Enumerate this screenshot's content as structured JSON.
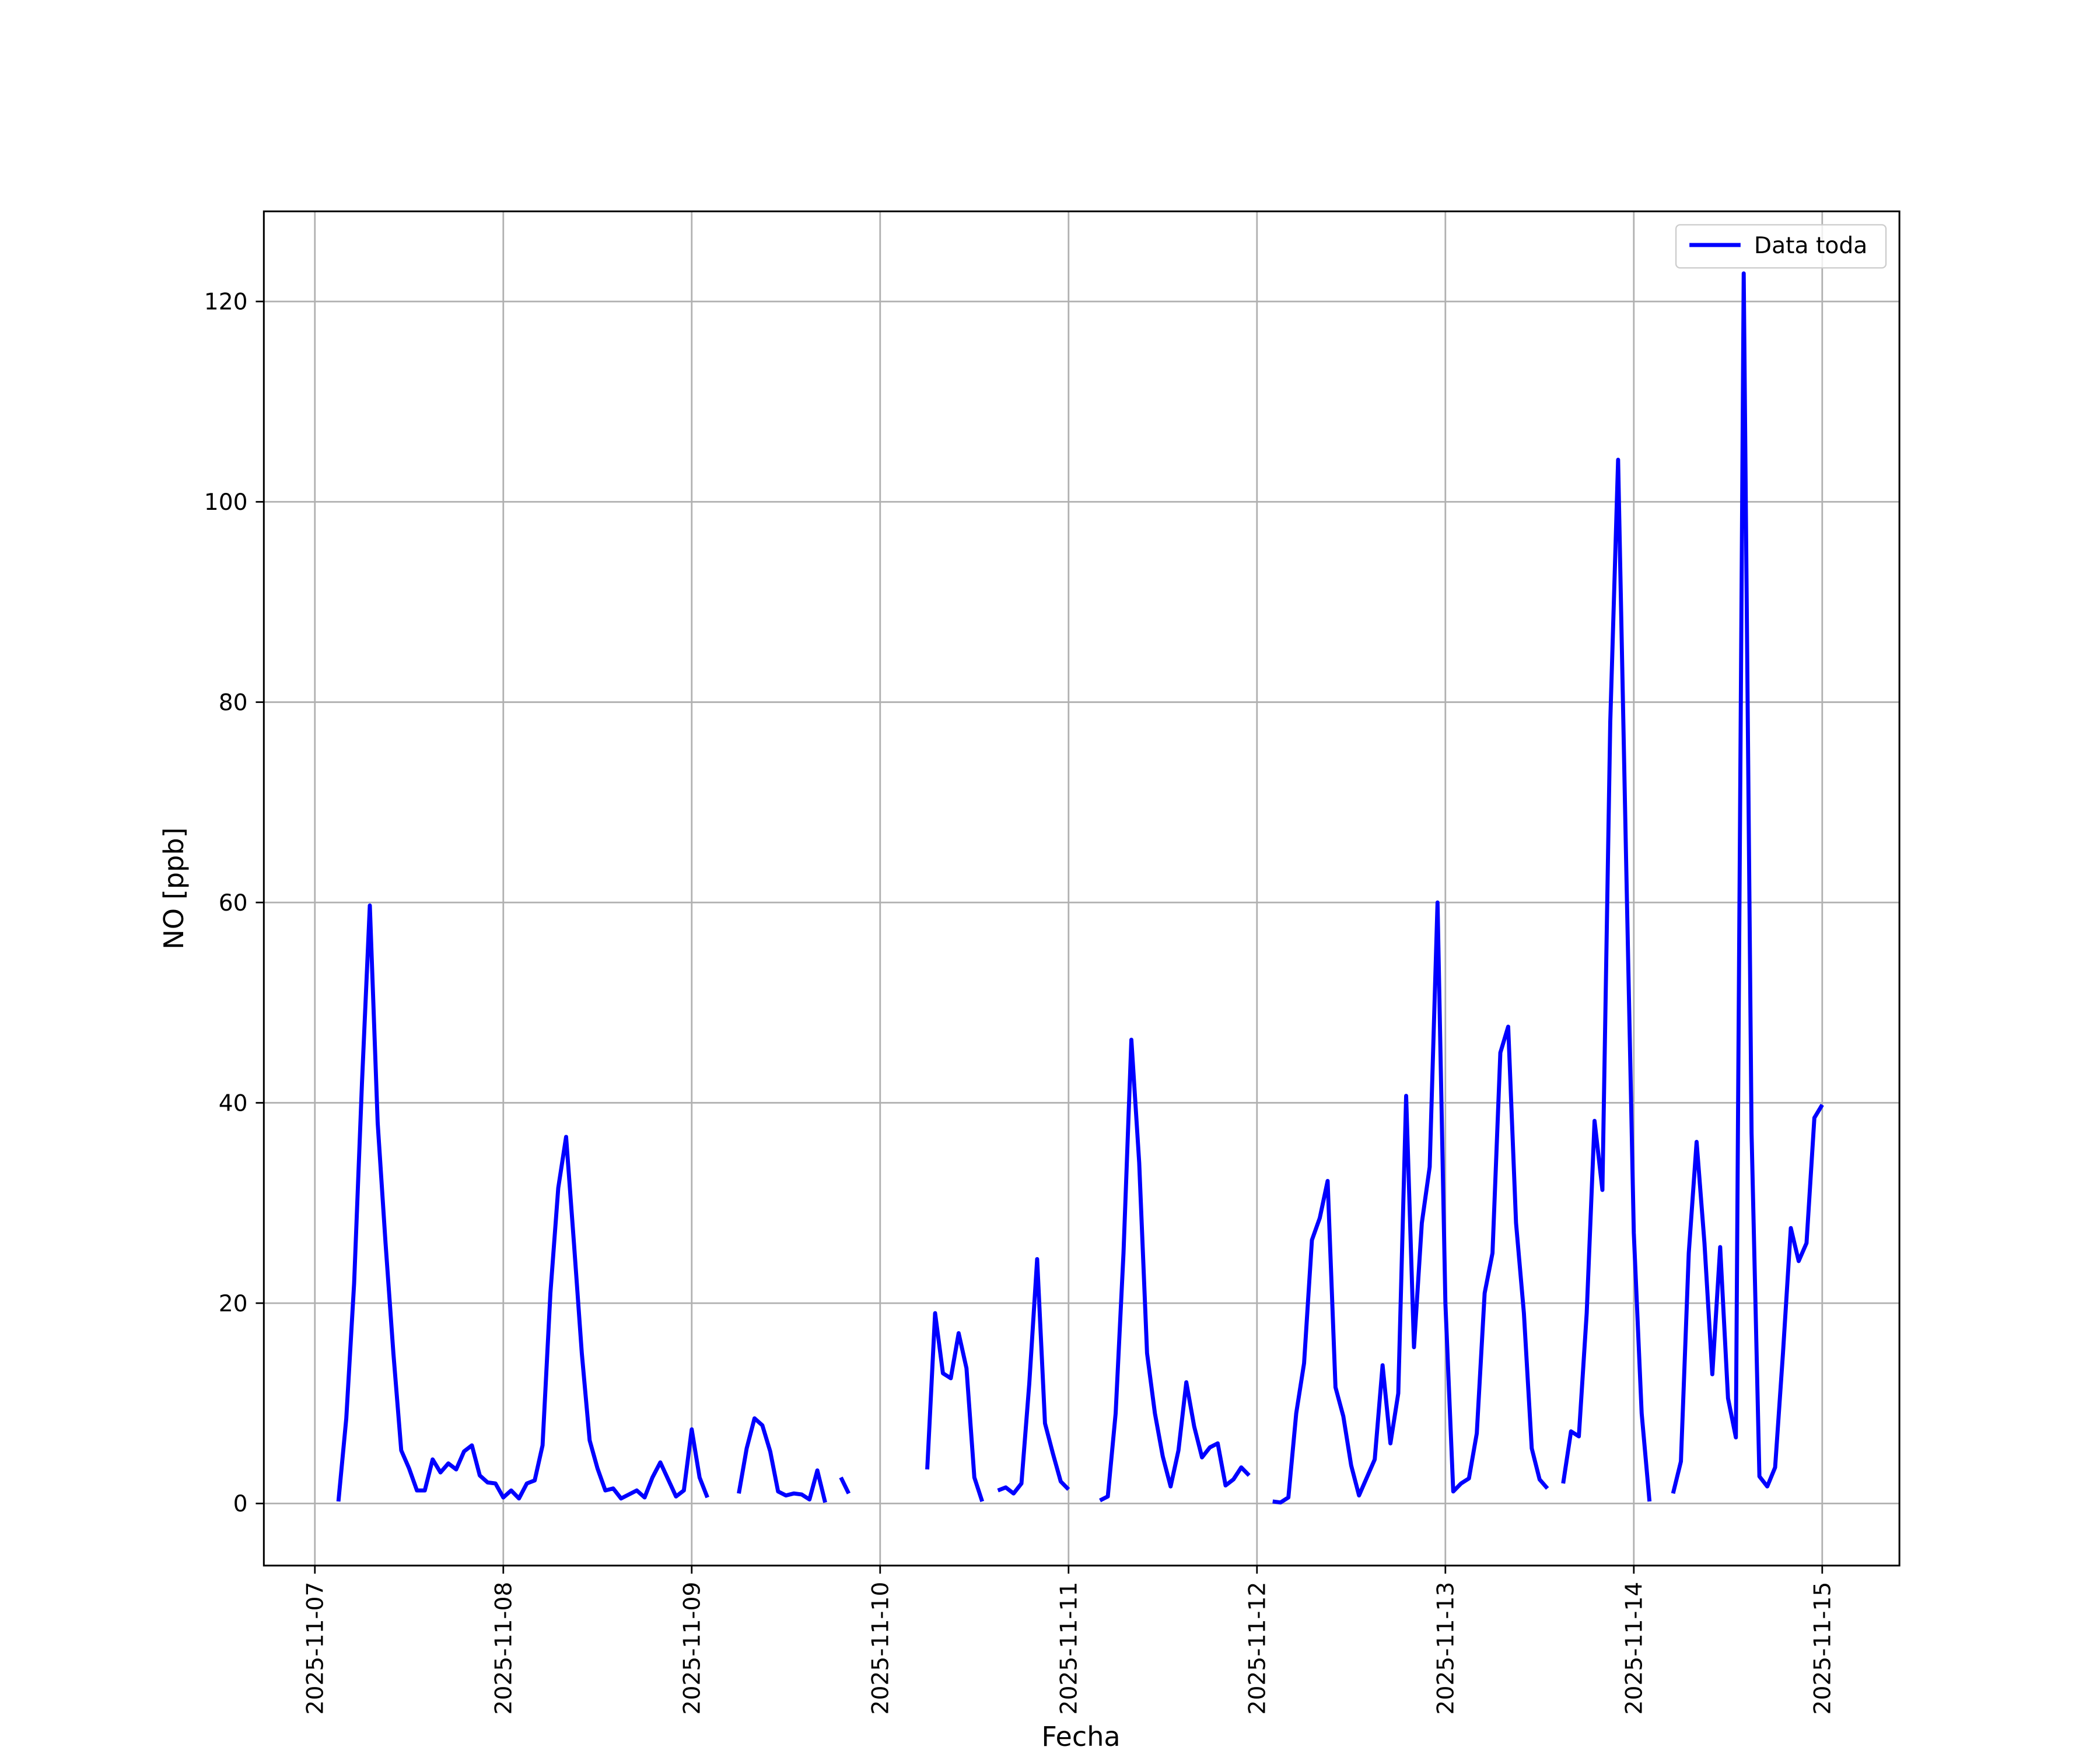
{
  "chart_data": {
    "type": "line",
    "xlabel": "Fecha",
    "ylabel": "NO [ppb]",
    "legend": "upper right",
    "grid": true,
    "xlim": [
      "2025-11-06 17:30",
      "2025-11-15 09:50"
    ],
    "ylim": [
      -6.2,
      129
    ],
    "xticks": [
      "2025-11-07",
      "2025-11-08",
      "2025-11-09",
      "2025-11-10",
      "2025-11-11",
      "2025-11-12",
      "2025-11-13",
      "2025-11-14",
      "2025-11-15"
    ],
    "yticks": [
      0,
      20,
      40,
      60,
      80,
      100,
      120
    ],
    "x": [
      "2025-11-07 03:00",
      "2025-11-07 04:00",
      "2025-11-07 05:00",
      "2025-11-07 06:00",
      "2025-11-07 07:00",
      "2025-11-07 08:00",
      "2025-11-07 09:00",
      "2025-11-07 10:00",
      "2025-11-07 11:00",
      "2025-11-07 12:00",
      "2025-11-07 13:00",
      "2025-11-07 14:00",
      "2025-11-07 15:00",
      "2025-11-07 16:00",
      "2025-11-07 17:00",
      "2025-11-07 18:00",
      "2025-11-07 19:00",
      "2025-11-07 20:00",
      "2025-11-07 21:00",
      "2025-11-07 22:00",
      "2025-11-07 23:00",
      "2025-11-08 00:00",
      "2025-11-08 01:00",
      "2025-11-08 02:00",
      "2025-11-08 03:00",
      "2025-11-08 04:00",
      "2025-11-08 05:00",
      "2025-11-08 06:00",
      "2025-11-08 07:00",
      "2025-11-08 08:00",
      "2025-11-08 09:00",
      "2025-11-08 10:00",
      "2025-11-08 11:00",
      "2025-11-08 12:00",
      "2025-11-08 13:00",
      "2025-11-08 14:00",
      "2025-11-08 15:00",
      "2025-11-08 16:00",
      "2025-11-08 17:00",
      "2025-11-08 18:00",
      "2025-11-08 19:00",
      "2025-11-08 20:00",
      "2025-11-08 21:00",
      "2025-11-08 22:00",
      "2025-11-08 23:00",
      "2025-11-09 00:00",
      "2025-11-09 01:00",
      "2025-11-09 02:00",
      "2025-11-09 03:00",
      "2025-11-09 04:00",
      "2025-11-09 05:00",
      "2025-11-09 06:00",
      "2025-11-09 07:00",
      "2025-11-09 08:00",
      "2025-11-09 09:00",
      "2025-11-09 10:00",
      "2025-11-09 11:00",
      "2025-11-09 12:00",
      "2025-11-09 13:00",
      "2025-11-09 14:00",
      "2025-11-09 15:00",
      "2025-11-09 16:00",
      "2025-11-09 17:00",
      "2025-11-09 18:00",
      "2025-11-09 19:00",
      "2025-11-09 20:00",
      "2025-11-09 21:00",
      "2025-11-09 22:00",
      "2025-11-09 23:00",
      "2025-11-10 00:00",
      "2025-11-10 01:00",
      "2025-11-10 02:00",
      "2025-11-10 03:00",
      "2025-11-10 04:00",
      "2025-11-10 05:00",
      "2025-11-10 06:00",
      "2025-11-10 07:00",
      "2025-11-10 08:00",
      "2025-11-10 09:00",
      "2025-11-10 10:00",
      "2025-11-10 11:00",
      "2025-11-10 12:00",
      "2025-11-10 13:00",
      "2025-11-10 14:00",
      "2025-11-10 15:00",
      "2025-11-10 16:00",
      "2025-11-10 17:00",
      "2025-11-10 18:00",
      "2025-11-10 19:00",
      "2025-11-10 20:00",
      "2025-11-10 21:00",
      "2025-11-10 22:00",
      "2025-11-10 23:00",
      "2025-11-11 00:00",
      "2025-11-11 01:00",
      "2025-11-11 02:00",
      "2025-11-11 03:00",
      "2025-11-11 04:00",
      "2025-11-11 05:00",
      "2025-11-11 06:00",
      "2025-11-11 07:00",
      "2025-11-11 08:00",
      "2025-11-11 09:00",
      "2025-11-11 10:00",
      "2025-11-11 11:00",
      "2025-11-11 12:00",
      "2025-11-11 13:00",
      "2025-11-11 14:00",
      "2025-11-11 15:00",
      "2025-11-11 16:00",
      "2025-11-11 17:00",
      "2025-11-11 18:00",
      "2025-11-11 19:00",
      "2025-11-11 20:00",
      "2025-11-11 21:00",
      "2025-11-11 22:00",
      "2025-11-11 23:00",
      "2025-11-12 00:00",
      "2025-11-12 01:00",
      "2025-11-12 02:00",
      "2025-11-12 03:00",
      "2025-11-12 04:00",
      "2025-11-12 05:00",
      "2025-11-12 06:00",
      "2025-11-12 07:00",
      "2025-11-12 08:00",
      "2025-11-12 09:00",
      "2025-11-12 10:00",
      "2025-11-12 11:00",
      "2025-11-12 12:00",
      "2025-11-12 13:00",
      "2025-11-12 14:00",
      "2025-11-12 15:00",
      "2025-11-12 16:00",
      "2025-11-12 17:00",
      "2025-11-12 18:00",
      "2025-11-12 19:00",
      "2025-11-12 20:00",
      "2025-11-12 21:00",
      "2025-11-12 22:00",
      "2025-11-12 23:00",
      "2025-11-13 00:00",
      "2025-11-13 01:00",
      "2025-11-13 02:00",
      "2025-11-13 03:00",
      "2025-11-13 04:00",
      "2025-11-13 05:00",
      "2025-11-13 06:00",
      "2025-11-13 07:00",
      "2025-11-13 08:00",
      "2025-11-13 09:00",
      "2025-11-13 10:00",
      "2025-11-13 11:00",
      "2025-11-13 12:00",
      "2025-11-13 13:00",
      "2025-11-13 14:00",
      "2025-11-13 15:00",
      "2025-11-13 16:00",
      "2025-11-13 17:00",
      "2025-11-13 18:00",
      "2025-11-13 19:00",
      "2025-11-13 20:00",
      "2025-11-13 21:00",
      "2025-11-13 22:00",
      "2025-11-13 23:00",
      "2025-11-14 00:00",
      "2025-11-14 01:00",
      "2025-11-14 02:00",
      "2025-11-14 03:00",
      "2025-11-14 04:00",
      "2025-11-14 05:00",
      "2025-11-14 06:00",
      "2025-11-14 07:00",
      "2025-11-14 08:00",
      "2025-11-14 09:00",
      "2025-11-14 10:00",
      "2025-11-14 11:00",
      "2025-11-14 12:00",
      "2025-11-14 13:00",
      "2025-11-14 14:00",
      "2025-11-14 15:00",
      "2025-11-14 16:00",
      "2025-11-14 17:00",
      "2025-11-14 18:00",
      "2025-11-14 19:00",
      "2025-11-14 20:00",
      "2025-11-14 21:00",
      "2025-11-14 22:00",
      "2025-11-14 23:00",
      "2025-11-15 00:00"
    ],
    "series": [
      {
        "name": "Data toda",
        "color": "#0000ff",
        "values": [
          0.2,
          8.5,
          22,
          42,
          59.7,
          38,
          26,
          15,
          5.3,
          3.5,
          1.3,
          1.3,
          4.4,
          3.1,
          4,
          3.4,
          5.2,
          5.8,
          2.8,
          2.1,
          2,
          0.6,
          1.3,
          0.5,
          2,
          2.3,
          5.8,
          21,
          31.5,
          36.6,
          26,
          15,
          6.3,
          3.5,
          1.3,
          1.5,
          0.5,
          0.9,
          1.3,
          0.6,
          2.6,
          4.1,
          2.4,
          0.7,
          1.3,
          7.4,
          2.6,
          0.6,
          null,
          null,
          null,
          1.0,
          5.5,
          8.5,
          7.8,
          5.2,
          1.2,
          0.8,
          1.0,
          0.9,
          0.4,
          3.3,
          0.1,
          null,
          2.6,
          1.0,
          null,
          null,
          null,
          null,
          null,
          null,
          null,
          null,
          null,
          3.4,
          19,
          13,
          12.5,
          17,
          13.5,
          2.6,
          0.2,
          null,
          1.3,
          1.6,
          1.0,
          2,
          12,
          24.4,
          8,
          5,
          2.2,
          1.4,
          null,
          null,
          null,
          0.3,
          0.7,
          9,
          25,
          46.3,
          34,
          15,
          9,
          4.7,
          1.7,
          5.3,
          12.1,
          7.7,
          4.6,
          5.6,
          6,
          1.8,
          2.4,
          3.6,
          2.8,
          null,
          null,
          0.2,
          0.1,
          0.6,
          9,
          14,
          26.3,
          28.5,
          32.2,
          11.6,
          8.7,
          3.8,
          0.8,
          2.6,
          4.4,
          13.8,
          6,
          11,
          40.7,
          15.6,
          28,
          33.6,
          60,
          20,
          1.2,
          2,
          2.5,
          7,
          21,
          25,
          45,
          47.6,
          28,
          19,
          5.5,
          2.4,
          1.5,
          null,
          2,
          7.2,
          6.7,
          19,
          38.2,
          31.3,
          78,
          104.2,
          65,
          27,
          9,
          0.2,
          null,
          null,
          1.0,
          4.2,
          25,
          36.1,
          26,
          12.9,
          25.6,
          10.5,
          6.6,
          122.8,
          37,
          2.7,
          1.7,
          3.6,
          15,
          27.5,
          24.2,
          26,
          38.5,
          39.8
        ]
      }
    ]
  }
}
